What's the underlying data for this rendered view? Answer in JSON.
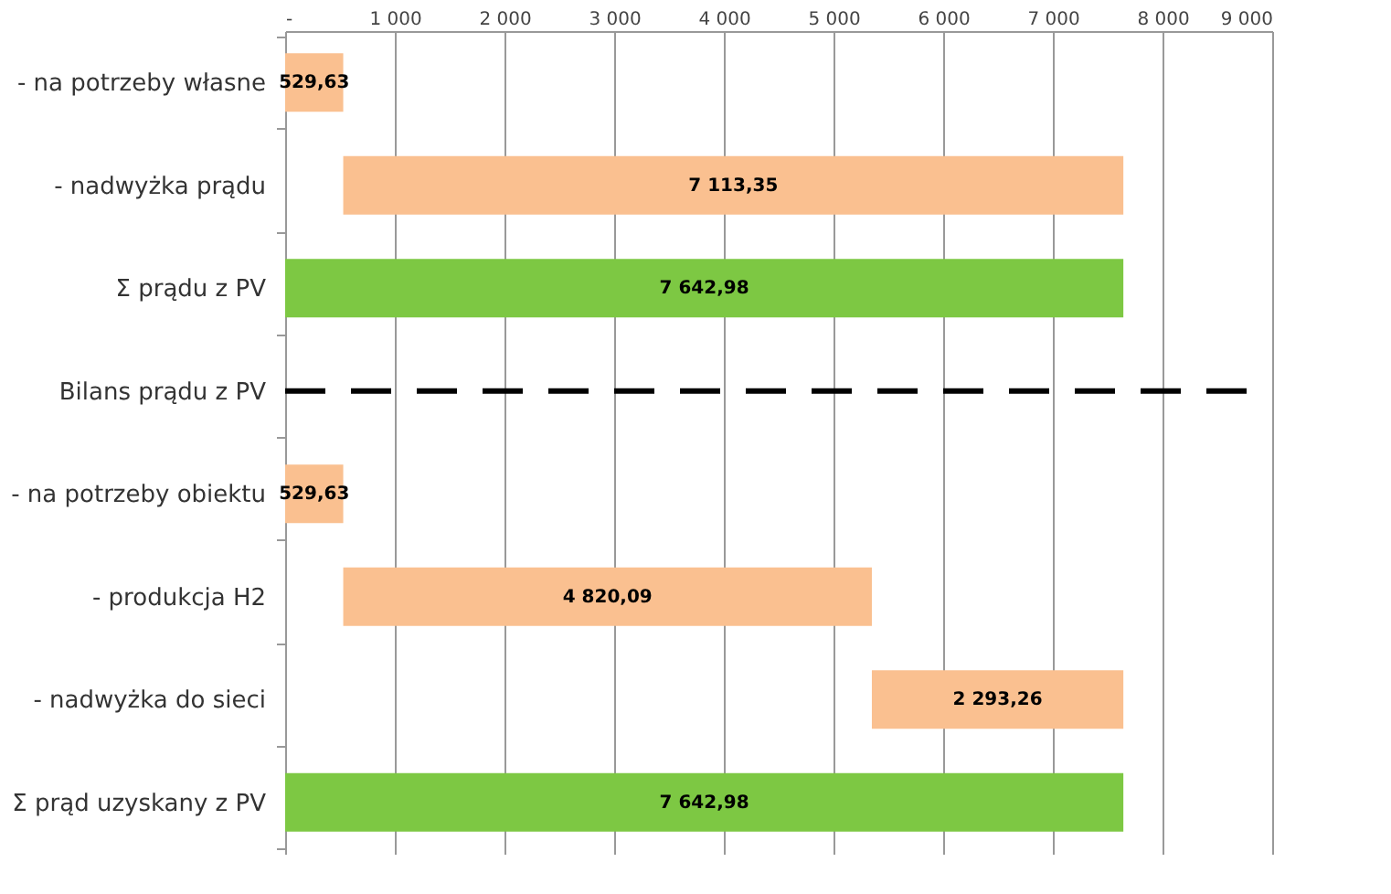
{
  "chart_data": {
    "type": "bar",
    "orientation": "horizontal",
    "categories": [
      "- na potrzeby własne",
      "- nadwyżka prądu",
      "Σ prądu z PV",
      "Bilans prądu z PV",
      "- na potrzeby obiektu",
      "- produkcja H2",
      "- nadwyżka do sieci",
      "Σ prąd uzyskany z PV"
    ],
    "values": [
      529.63,
      7113.35,
      7642.98,
      null,
      529.63,
      4820.09,
      2293.26,
      7642.98
    ],
    "base": [
      0,
      529.63,
      0,
      null,
      0,
      529.63,
      5349.72,
      0
    ],
    "colors": [
      "#fac090",
      "#fac090",
      "#7dc843",
      null,
      "#fac090",
      "#fac090",
      "#fac090",
      "#7dc843"
    ],
    "value_labels": [
      "529,63",
      "7 113,35",
      "7 642,98",
      null,
      "529,63",
      "4 820,09",
      "2 293,26",
      "7 642,98"
    ],
    "xlim": [
      0,
      9000
    ],
    "xticks": [
      {
        "value": 0,
        "label": "-"
      },
      {
        "value": 1000,
        "label": "1 000"
      },
      {
        "value": 2000,
        "label": "2 000"
      },
      {
        "value": 3000,
        "label": "3 000"
      },
      {
        "value": 4000,
        "label": "4 000"
      },
      {
        "value": 5000,
        "label": "5 000"
      },
      {
        "value": 6000,
        "label": "6 000"
      },
      {
        "value": 7000,
        "label": "7 000"
      },
      {
        "value": 8000,
        "label": "8 000"
      },
      {
        "value": 9000,
        "label": "9 000"
      }
    ],
    "grid": "x",
    "ref_lines": [
      {
        "axis": "y",
        "value": "Bilans prądu z PV",
        "color": "#000000",
        "line_style": "dashed"
      }
    ]
  }
}
